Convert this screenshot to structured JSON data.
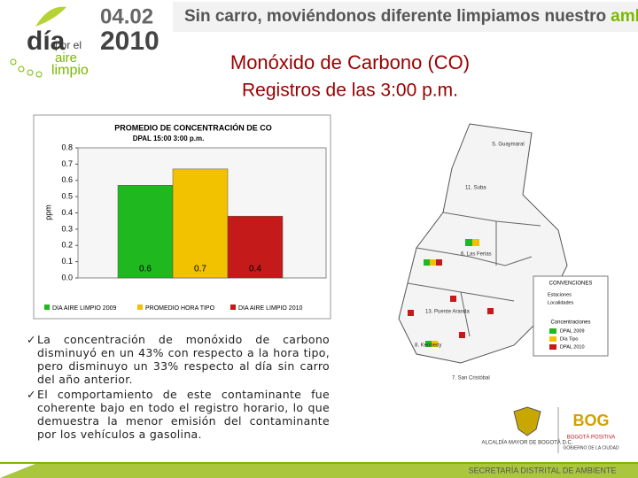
{
  "header": {
    "logo": {
      "word1": "día",
      "word2": "por el",
      "word3": "aire",
      "word4": "limpio"
    },
    "date": "04.02",
    "year": "2010",
    "slogan": "Sin carro, moviéndonos diferente limpiamos nuestro",
    "slogan_highlight": "ambiente"
  },
  "title": "Monóxido de Carbono (CO)",
  "subtitle": "Registros de las 3:00 p.m.",
  "chart_data": {
    "type": "bar",
    "title": "PROMEDIO DE CONCENTRACIÓN DE CO",
    "subtitle": "DPAL 15:00 3:00 p.m.",
    "y_label": "ppm",
    "categories": [
      "DIA AIRE LIMPIO 2009",
      "PROMEDIO HORA TIPO",
      "DIA AIRE LIMPIO 2010"
    ],
    "values": [
      0.57,
      0.67,
      0.38
    ],
    "value_labels": [
      "0.6",
      "0.7",
      "0.4"
    ],
    "colors": [
      "#1fb81f",
      "#f2c200",
      "#c41a1a"
    ],
    "ylim": [
      0,
      0.8
    ],
    "yticks": [
      {
        "value": 0,
        "label": "0.0"
      },
      0.1,
      0.2,
      0.3,
      0.4,
      0.5,
      0.6,
      0.7,
      0.8
    ],
    "legend": "bottom"
  },
  "bullets": [
    "La concentración de monóxido de carbono disminuyó en un 43% con respecto a la hora tipo, pero disminuyo un 33% respecto al día sin carro del año anterior.",
    "El comportamiento de este contaminante fue coherente bajo en todo el registro horario, lo que demuestra la menor emisión del contaminante por los vehículos a gasolina."
  ],
  "map": {
    "places": [
      "S. Guaymaral",
      "11. Suba",
      "6. Las Ferias",
      "13. Puente Aranda",
      "8. Kennedy",
      "7. San Cristóbal"
    ],
    "legend": {
      "title": "CONVENCIONES",
      "items": [
        "Estaciones",
        "Localidades"
      ],
      "conc_title": "Concentraciones",
      "conc_items": [
        "DPAL 2009",
        "Día Tipo",
        "DPAL 2010"
      ]
    }
  },
  "footer": {
    "alcaldia": "ALCALDÍA MAYOR DE BOGOTÁ D.C.",
    "bog": "BOG",
    "bog_sub": "BOGOTÁ POSITIVA",
    "bog_sub2": "GOBIERNO DE LA CIUDAD",
    "secretaria": "SECRETARÍA DISTRITAL DE AMBIENTE"
  }
}
